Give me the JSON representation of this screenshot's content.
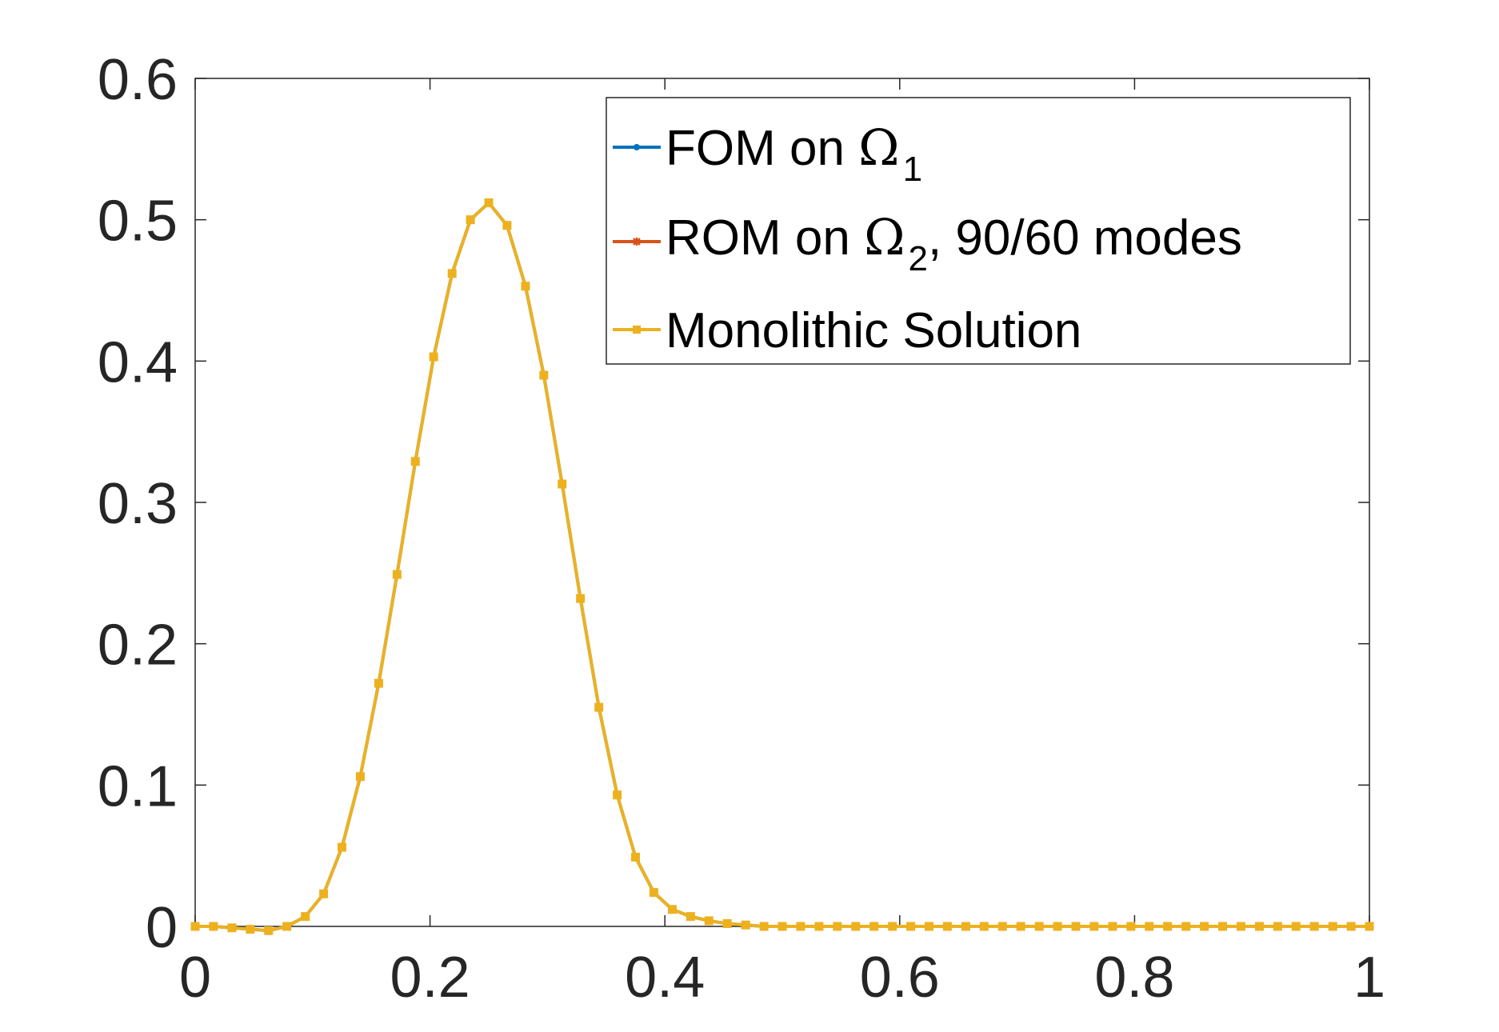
{
  "chart_data": {
    "type": "line",
    "title": "",
    "xlabel": "",
    "ylabel": "",
    "xlim": [
      0,
      1
    ],
    "ylim": [
      0,
      0.6
    ],
    "xticks": [
      "0",
      "0.2",
      "0.4",
      "0.6",
      "0.8",
      "1"
    ],
    "yticks": [
      "0",
      "0.1",
      "0.2",
      "0.3",
      "0.4",
      "0.5",
      "0.6"
    ],
    "grid": false,
    "legend_position": "top-right",
    "legend": [
      {
        "prefix": "FOM on ",
        "symbol": "Ω",
        "subscript": "1",
        "suffix": ""
      },
      {
        "prefix": "ROM on ",
        "symbol": "Ω",
        "subscript": "2",
        "suffix": ", 90/60 modes"
      },
      {
        "prefix": "Monolithic Solution",
        "symbol": "",
        "subscript": "",
        "suffix": ""
      }
    ],
    "series": [
      {
        "color": "#0072BD",
        "marker": "dot",
        "x": [
          0,
          0.0156,
          0.0313,
          0.0469,
          0.0625,
          0.0781,
          0.0938,
          0.1094,
          0.125,
          0.1406,
          0.1563,
          0.1719,
          0.1875,
          0.2031,
          0.2188,
          0.2344,
          0.25,
          0.2656,
          0.2813,
          0.2969,
          0.3125,
          0.3281,
          0.3438,
          0.3594,
          0.375,
          0.3906,
          0.4063,
          0.4219,
          0.4375,
          0.4531,
          0.4688,
          0.4844,
          0.5
        ],
        "y": [
          0,
          0,
          -0.001,
          -0.002,
          -0.003,
          0,
          0.007,
          0.023,
          0.056,
          0.106,
          0.172,
          0.249,
          0.329,
          0.403,
          0.462,
          0.5,
          0.512,
          0.496,
          0.453,
          0.39,
          0.313,
          0.232,
          0.155,
          0.093,
          0.049,
          0.024,
          0.012,
          0.007,
          0.004,
          0.002,
          0.001,
          0,
          0
        ]
      },
      {
        "color": "#D95319",
        "marker": "star",
        "x": [
          0.5,
          0.5156,
          0.5313,
          0.5469,
          0.5625,
          0.5781,
          0.5938,
          0.6094,
          0.625,
          0.6406,
          0.6563,
          0.6719,
          0.6875,
          0.7031,
          0.7188,
          0.7344,
          0.75,
          0.7656,
          0.7813,
          0.7969,
          0.8125,
          0.8281,
          0.8438,
          0.8594,
          0.875,
          0.8906,
          0.9063,
          0.9219,
          0.9375,
          0.9531,
          0.9688,
          0.9844,
          1
        ],
        "y": [
          0,
          0,
          0,
          0,
          0,
          0,
          0,
          0,
          0,
          0,
          0,
          0,
          0,
          0,
          0,
          0,
          0,
          0,
          0,
          0,
          0,
          0,
          0,
          0,
          0,
          0,
          0,
          0,
          0,
          0,
          0,
          0,
          0
        ]
      },
      {
        "color": "#EDB120",
        "marker": "square",
        "x": [
          0,
          0.0156,
          0.0313,
          0.0469,
          0.0625,
          0.0781,
          0.0938,
          0.1094,
          0.125,
          0.1406,
          0.1563,
          0.1719,
          0.1875,
          0.2031,
          0.2188,
          0.2344,
          0.25,
          0.2656,
          0.2813,
          0.2969,
          0.3125,
          0.3281,
          0.3438,
          0.3594,
          0.375,
          0.3906,
          0.4063,
          0.4219,
          0.4375,
          0.4531,
          0.4688,
          0.4844,
          0.5,
          0.5156,
          0.5313,
          0.5469,
          0.5625,
          0.5781,
          0.5938,
          0.6094,
          0.625,
          0.6406,
          0.6563,
          0.6719,
          0.6875,
          0.7031,
          0.7188,
          0.7344,
          0.75,
          0.7656,
          0.7813,
          0.7969,
          0.8125,
          0.8281,
          0.8438,
          0.8594,
          0.875,
          0.8906,
          0.9063,
          0.9219,
          0.9375,
          0.9531,
          0.9688,
          0.9844,
          1
        ],
        "y": [
          0,
          0,
          -0.001,
          -0.002,
          -0.003,
          0,
          0.007,
          0.023,
          0.056,
          0.106,
          0.172,
          0.249,
          0.329,
          0.403,
          0.462,
          0.5,
          0.512,
          0.496,
          0.453,
          0.39,
          0.313,
          0.232,
          0.155,
          0.093,
          0.049,
          0.024,
          0.012,
          0.007,
          0.004,
          0.002,
          0.001,
          0,
          0,
          0,
          0,
          0,
          0,
          0,
          0,
          0,
          0,
          0,
          0,
          0,
          0,
          0,
          0,
          0,
          0,
          0,
          0,
          0,
          0,
          0,
          0,
          0,
          0,
          0,
          0,
          0,
          0,
          0,
          0,
          0,
          0
        ]
      }
    ]
  }
}
